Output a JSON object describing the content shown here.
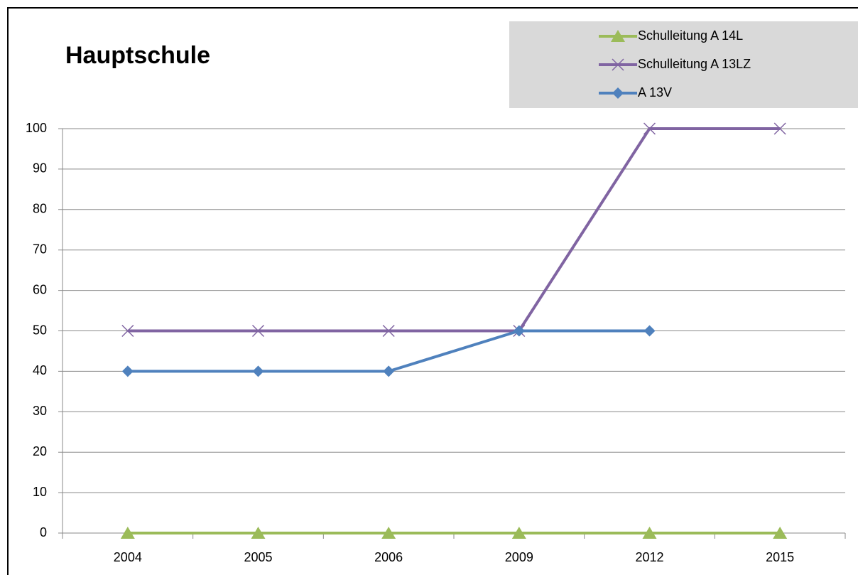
{
  "chart_data": {
    "type": "line",
    "title": "Hauptschule",
    "categories": [
      "2004",
      "2005",
      "2006",
      "2009",
      "2012",
      "2015"
    ],
    "series": [
      {
        "name": "Schulleitung A 14L",
        "color": "#9bbb59",
        "marker": "triangle",
        "values": [
          0,
          0,
          0,
          0,
          0,
          0
        ]
      },
      {
        "name": "Schulleitung A 13LZ",
        "color": "#8064a2",
        "marker": "x",
        "values": [
          50,
          50,
          50,
          50,
          100,
          100
        ]
      },
      {
        "name": "A 13V",
        "color": "#4f81bd",
        "marker": "diamond",
        "values": [
          40,
          40,
          40,
          50,
          50,
          null
        ]
      }
    ],
    "ylim": [
      0,
      100
    ],
    "yticks": [
      0,
      10,
      20,
      30,
      40,
      50,
      60,
      70,
      80,
      90,
      100
    ],
    "grid": true,
    "legend": "top-right"
  }
}
